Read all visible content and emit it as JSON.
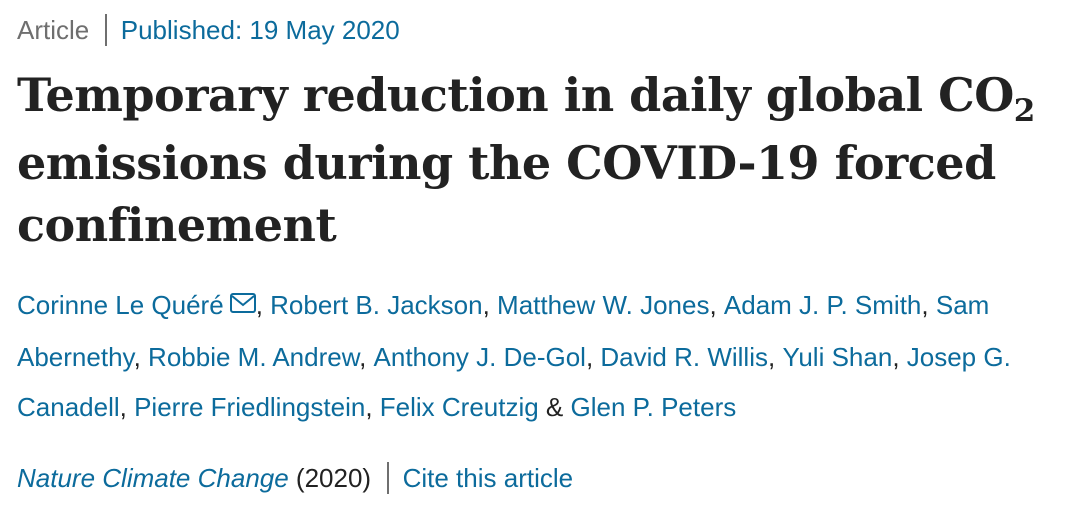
{
  "article_meta": {
    "type": "Article",
    "published": "Published: 19 May 2020"
  },
  "title": {
    "part1": "Temporary reduction in daily global CO",
    "subscript": "2",
    "part2": " emissions during the COVID-19 forced confinement"
  },
  "authors": [
    {
      "name": "Corinne Le Quéré",
      "sep": ", "
    },
    {
      "name": "Robert B. Jackson",
      "sep": ", "
    },
    {
      "name": "Matthew W. Jones",
      "sep": ", "
    },
    {
      "name": "Adam J. P. Smith",
      "sep": ", "
    },
    {
      "name": "Sam Abernethy",
      "sep": ", "
    },
    {
      "name": "Robbie M. Andrew",
      "sep": ", "
    },
    {
      "name": "Anthony J. De-Gol",
      "sep": ", "
    },
    {
      "name": "David R. Willis",
      "sep": ", "
    },
    {
      "name": "Yuli Shan",
      "sep": ", "
    },
    {
      "name": "Josep G. Canadell",
      "sep": ", "
    },
    {
      "name": "Pierre Friedlingstein",
      "sep": ", "
    },
    {
      "name": "Felix Creutzig",
      "sep": " & "
    },
    {
      "name": "Glen P. Peters",
      "sep": ""
    }
  ],
  "citation": {
    "journal": "Nature Climate Change",
    "year": " (2020)",
    "cite_label": "Cite this article"
  },
  "icons": {
    "corresponding_author": "envelope-icon"
  },
  "colors": {
    "link": "#0c6b9c",
    "text": "#222222",
    "muted": "#6f6f6f"
  }
}
